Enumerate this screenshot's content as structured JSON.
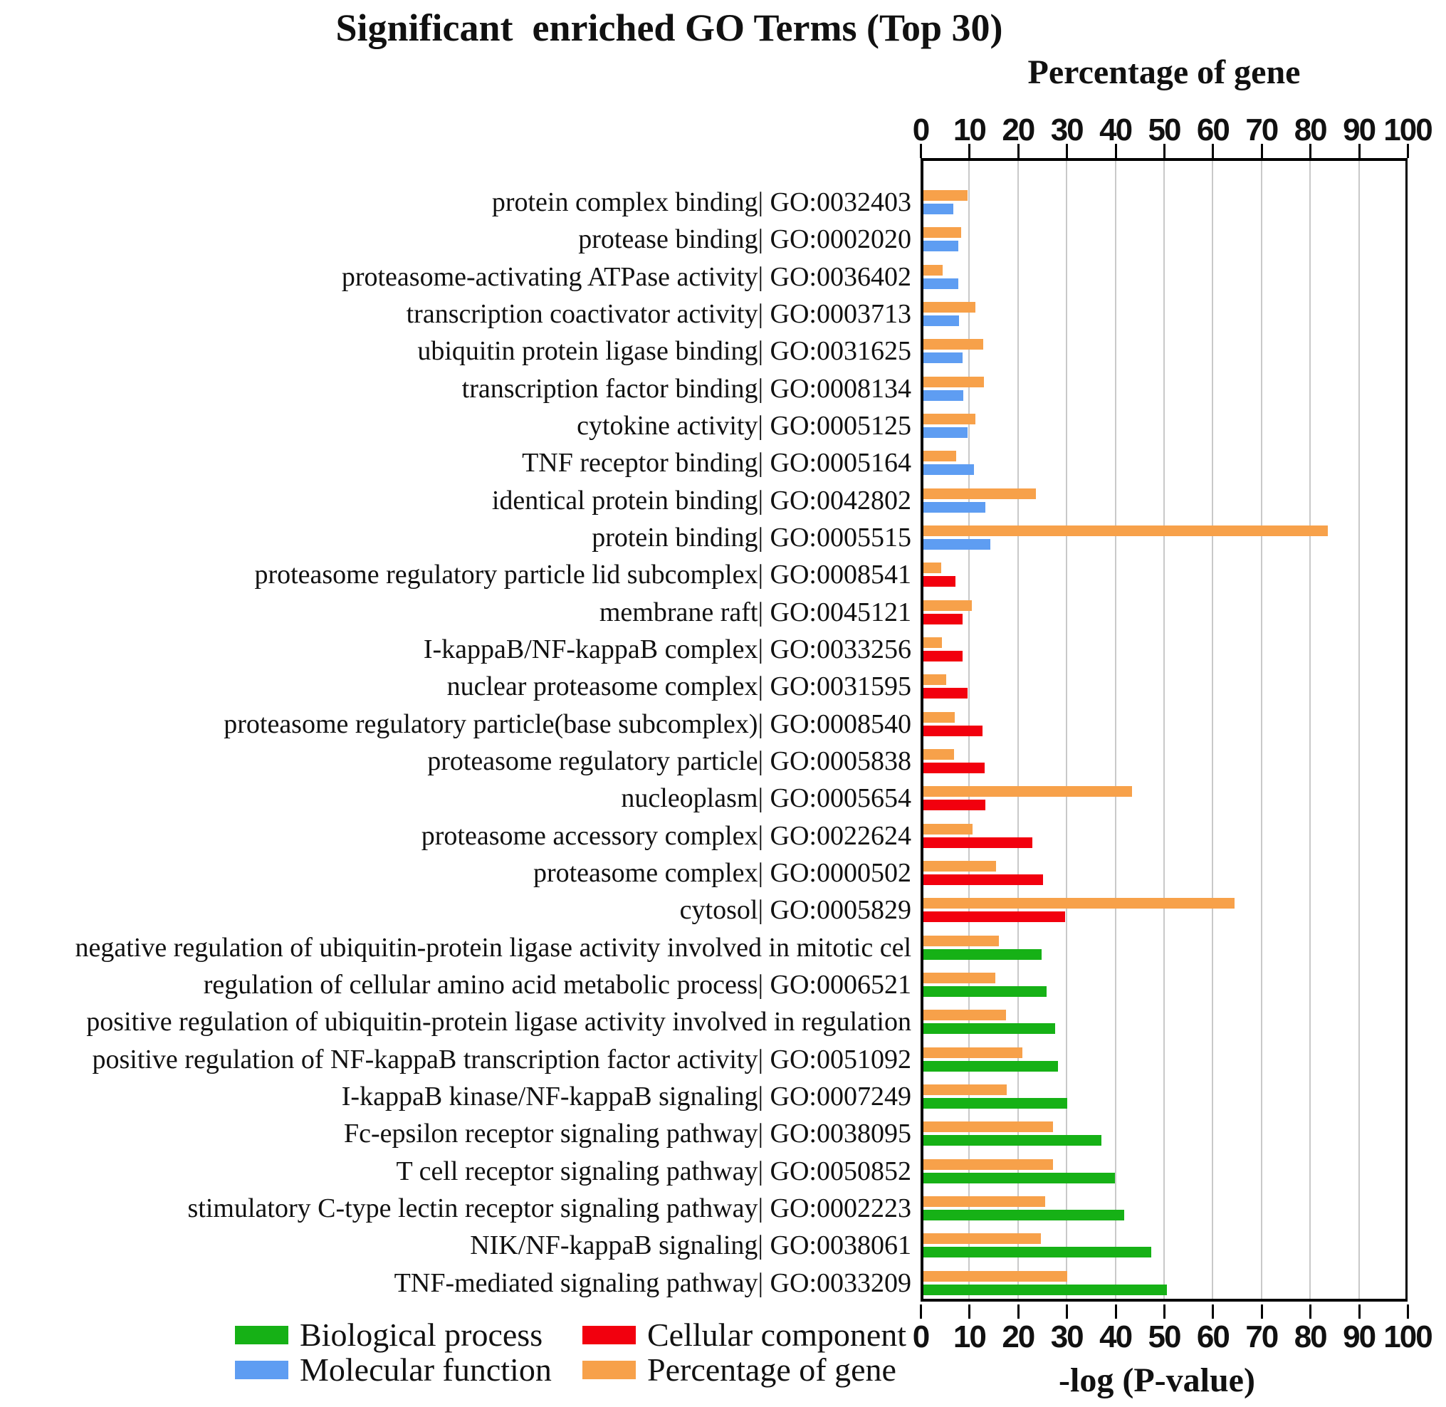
{
  "title": "Significant  enriched GO Terms (Top 30)",
  "colors": {
    "biological_process": "#16B116",
    "molecular_function": "#5E9DF2",
    "cellular_component": "#F2000E",
    "percentage_of_gene": "#F7A14A",
    "grid": "#c9c9c9",
    "axis": "#000000"
  },
  "legend": [
    {
      "label": "Biological process",
      "color_key": "biological_process",
      "col": 0,
      "row": 0
    },
    {
      "label": "Molecular function",
      "color_key": "molecular_function",
      "col": 0,
      "row": 1
    },
    {
      "label": "Cellular component",
      "color_key": "cellular_component",
      "col": 1,
      "row": 0
    },
    {
      "label": "Percentage of gene",
      "color_key": "percentage_of_gene",
      "col": 1,
      "row": 1
    }
  ],
  "chart_data": {
    "type": "bar",
    "orientation": "horizontal",
    "title": "Significant  enriched GO Terms (Top 30)",
    "top_axis_label": "Percentage of gene",
    "bottom_axis_label": "-log (P-value)",
    "xlim": [
      0,
      100
    ],
    "x_ticks": [
      0,
      10,
      20,
      30,
      40,
      50,
      60,
      70,
      80,
      90,
      100
    ],
    "grid": true,
    "bar_series": [
      "Percentage of gene",
      "-log (P-value)"
    ],
    "rows": [
      {
        "label": "protein complex binding| GO:0032403",
        "category": "molecular_function",
        "percentage_of_gene": 9.1,
        "neg_log_p": 6.2
      },
      {
        "label": "protease binding| GO:0002020",
        "category": "molecular_function",
        "percentage_of_gene": 7.7,
        "neg_log_p": 7.1
      },
      {
        "label": "proteasome-activating ATPase activity| GO:0036402",
        "category": "molecular_function",
        "percentage_of_gene": 3.9,
        "neg_log_p": 7.2
      },
      {
        "label": "transcription coactivator activity| GO:0003713",
        "category": "molecular_function",
        "percentage_of_gene": 10.7,
        "neg_log_p": 7.3
      },
      {
        "label": "ubiquitin protein ligase binding| GO:0031625",
        "category": "molecular_function",
        "percentage_of_gene": 12.3,
        "neg_log_p": 8.1
      },
      {
        "label": "transcription factor binding| GO:0008134",
        "category": "molecular_function",
        "percentage_of_gene": 12.4,
        "neg_log_p": 8.2
      },
      {
        "label": "cytokine activity| GO:0005125",
        "category": "molecular_function",
        "percentage_of_gene": 10.7,
        "neg_log_p": 9.0
      },
      {
        "label": "TNF receptor binding| GO:0005164",
        "category": "molecular_function",
        "percentage_of_gene": 6.7,
        "neg_log_p": 10.4
      },
      {
        "label": "identical protein binding| GO:0042802",
        "category": "molecular_function",
        "percentage_of_gene": 23.1,
        "neg_log_p": 12.7
      },
      {
        "label": "protein binding| GO:0005515",
        "category": "molecular_function",
        "percentage_of_gene": 83.0,
        "neg_log_p": 13.8
      },
      {
        "label": "proteasome regulatory particle lid subcomplex| GO:0008541",
        "category": "cellular_component",
        "percentage_of_gene": 3.6,
        "neg_log_p": 6.6
      },
      {
        "label": "membrane raft| GO:0045121",
        "category": "cellular_component",
        "percentage_of_gene": 9.9,
        "neg_log_p": 8.0
      },
      {
        "label": "I-kappaB/NF-kappaB complex| GO:0033256",
        "category": "cellular_component",
        "percentage_of_gene": 3.8,
        "neg_log_p": 8.0
      },
      {
        "label": "nuclear proteasome complex| GO:0031595",
        "category": "cellular_component",
        "percentage_of_gene": 4.7,
        "neg_log_p": 9.1
      },
      {
        "label": "proteasome regulatory particle(base subcomplex)| GO:0008540",
        "category": "cellular_component",
        "percentage_of_gene": 6.4,
        "neg_log_p": 12.2
      },
      {
        "label": "proteasome regulatory particle| GO:0005838",
        "category": "cellular_component",
        "percentage_of_gene": 6.3,
        "neg_log_p": 12.5
      },
      {
        "label": "nucleoplasm| GO:0005654",
        "category": "cellular_component",
        "percentage_of_gene": 42.8,
        "neg_log_p": 12.7
      },
      {
        "label": "proteasome accessory complex| GO:0022624",
        "category": "cellular_component",
        "percentage_of_gene": 10.1,
        "neg_log_p": 22.3
      },
      {
        "label": "proteasome complex| GO:0000502",
        "category": "cellular_component",
        "percentage_of_gene": 14.9,
        "neg_log_p": 24.5
      },
      {
        "label": "cytosol| GO:0005829",
        "category": "cellular_component",
        "percentage_of_gene": 63.9,
        "neg_log_p": 29.1
      },
      {
        "label": "negative regulation of ubiquitin-protein ligase activity involved in mitotic cel",
        "category": "biological_process",
        "percentage_of_gene": 15.5,
        "neg_log_p": 24.2
      },
      {
        "label": "regulation of cellular amino acid metabolic process| GO:0006521",
        "category": "biological_process",
        "percentage_of_gene": 14.7,
        "neg_log_p": 25.3
      },
      {
        "label": "positive regulation of ubiquitin-protein ligase activity involved in regulation",
        "category": "biological_process",
        "percentage_of_gene": 17.0,
        "neg_log_p": 27.0
      },
      {
        "label": "positive regulation of NF-kappaB transcription factor activity| GO:0051092",
        "category": "biological_process",
        "percentage_of_gene": 20.3,
        "neg_log_p": 27.6
      },
      {
        "label": "I-kappaB kinase/NF-kappaB signaling| GO:0007249",
        "category": "biological_process",
        "percentage_of_gene": 17.1,
        "neg_log_p": 29.5
      },
      {
        "label": "Fc-epsilon receptor signaling pathway| GO:0038095",
        "category": "biological_process",
        "percentage_of_gene": 26.6,
        "neg_log_p": 36.5
      },
      {
        "label": "T cell receptor signaling pathway| GO:0050852",
        "category": "biological_process",
        "percentage_of_gene": 26.6,
        "neg_log_p": 39.3
      },
      {
        "label": "stimulatory C-type lectin receptor signaling pathway| GO:0002223",
        "category": "biological_process",
        "percentage_of_gene": 25.0,
        "neg_log_p": 41.2
      },
      {
        "label": "NIK/NF-kappaB signaling| GO:0038061",
        "category": "biological_process",
        "percentage_of_gene": 24.1,
        "neg_log_p": 46.8
      },
      {
        "label": "TNF-mediated signaling pathway| GO:0033209",
        "category": "biological_process",
        "percentage_of_gene": 29.5,
        "neg_log_p": 50.0
      }
    ]
  }
}
